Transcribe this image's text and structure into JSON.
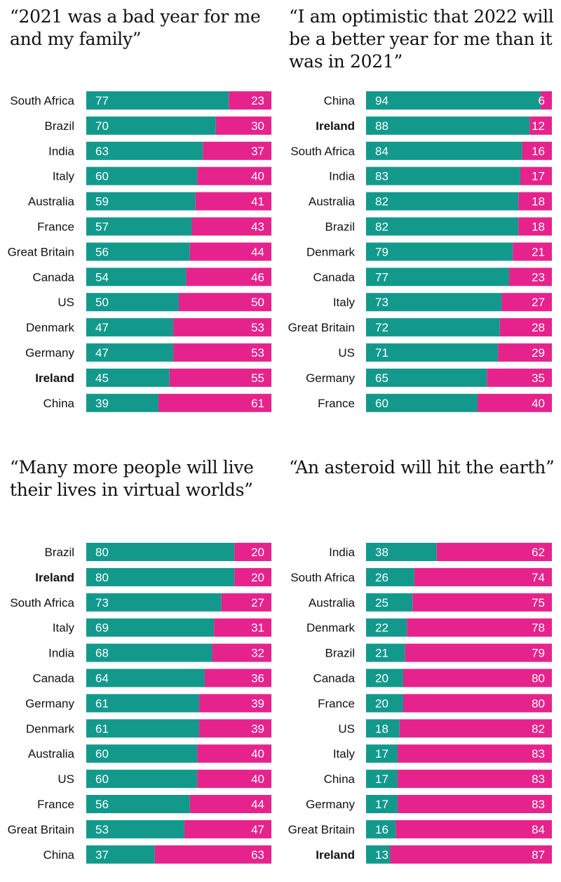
{
  "colors": {
    "agree": "#13998c",
    "disagree": "#e6238c",
    "label": "#111111",
    "value_text": "#ffffff"
  },
  "chart_data": [
    {
      "type": "bar",
      "stacked": true,
      "orientation": "horizontal",
      "title": "“2021 was a bad year for me and my family”",
      "xlim": [
        0,
        100
      ],
      "highlight": "Ireland",
      "categories": [
        "South Africa",
        "Brazil",
        "India",
        "Italy",
        "Australia",
        "France",
        "Great Britain",
        "Canada",
        "US",
        "Denmark",
        "Germany",
        "Ireland",
        "China"
      ],
      "series": [
        {
          "values": [
            77,
            70,
            63,
            60,
            59,
            57,
            56,
            54,
            50,
            47,
            47,
            45,
            39
          ]
        },
        {
          "values": [
            23,
            30,
            37,
            40,
            41,
            43,
            44,
            46,
            50,
            53,
            53,
            55,
            61
          ]
        }
      ]
    },
    {
      "type": "bar",
      "stacked": true,
      "orientation": "horizontal",
      "title": "“I am optimistic that 2022 will be a better year for me than it was in 2021”",
      "xlim": [
        0,
        100
      ],
      "highlight": "Ireland",
      "categories": [
        "China",
        "Ireland",
        "South Africa",
        "India",
        "Australia",
        "Brazil",
        "Denmark",
        "Canada",
        "Italy",
        "Great Britain",
        "US",
        "Germany",
        "France"
      ],
      "series": [
        {
          "values": [
            94,
            88,
            84,
            83,
            82,
            82,
            79,
            77,
            73,
            72,
            71,
            65,
            60
          ]
        },
        {
          "values": [
            6,
            12,
            16,
            17,
            18,
            18,
            21,
            23,
            27,
            28,
            29,
            35,
            40
          ]
        }
      ]
    },
    {
      "type": "bar",
      "stacked": true,
      "orientation": "horizontal",
      "title": "“Many more people will live their lives in virtual worlds”",
      "xlim": [
        0,
        100
      ],
      "highlight": "Ireland",
      "categories": [
        "Brazil",
        "Ireland",
        "South Africa",
        "Italy",
        "India",
        "Canada",
        "Germany",
        "Denmark",
        "Australia",
        "US",
        "France",
        "Great Britain",
        "China"
      ],
      "series": [
        {
          "values": [
            80,
            80,
            73,
            69,
            68,
            64,
            61,
            61,
            60,
            60,
            56,
            53,
            37
          ]
        },
        {
          "values": [
            20,
            20,
            27,
            31,
            32,
            36,
            39,
            39,
            40,
            40,
            44,
            47,
            63
          ]
        }
      ]
    },
    {
      "type": "bar",
      "stacked": true,
      "orientation": "horizontal",
      "title": "“An asteroid will hit the earth”",
      "xlim": [
        0,
        100
      ],
      "highlight": "Ireland",
      "categories": [
        "India",
        "South Africa",
        "Australia",
        "Denmark",
        "Brazil",
        "Canada",
        "France",
        "US",
        "Italy",
        "China",
        "Germany",
        "Great Britain",
        "Ireland"
      ],
      "series": [
        {
          "values": [
            38,
            26,
            25,
            22,
            21,
            20,
            20,
            18,
            17,
            17,
            17,
            16,
            13
          ]
        },
        {
          "values": [
            62,
            74,
            75,
            78,
            79,
            80,
            80,
            82,
            83,
            83,
            83,
            84,
            87
          ]
        }
      ]
    }
  ]
}
